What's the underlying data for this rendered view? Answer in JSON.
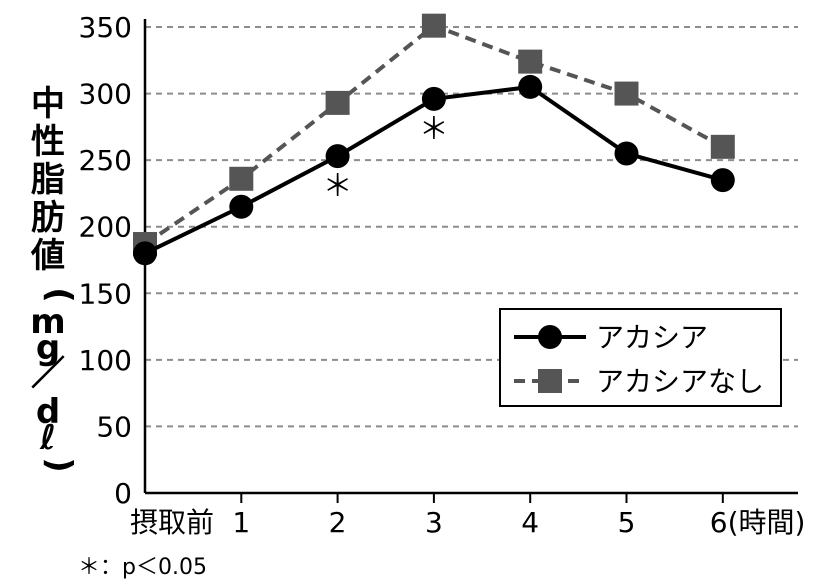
{
  "chart_data": {
    "type": "line",
    "categories": [
      "摂取前",
      "1",
      "2",
      "3",
      "4",
      "5",
      "6"
    ],
    "x_unit_label": "(時間)",
    "ylabel": "中性脂肪値(mg／dℓ)",
    "ylim": [
      0,
      350
    ],
    "y_ticks": [
      0,
      50,
      100,
      150,
      200,
      250,
      300,
      350
    ],
    "grid": "horizontal dashed",
    "legend_position": "lower-right",
    "series": [
      {
        "name": "アカシア",
        "values": [
          180,
          215,
          253,
          296,
          305,
          255,
          235
        ],
        "color": "#000000",
        "line_style": "solid",
        "marker": "circle"
      },
      {
        "name": "アカシアなし",
        "values": [
          187,
          236,
          293,
          351,
          324,
          300,
          260
        ],
        "color": "#555555",
        "line_style": "dashed",
        "marker": "square"
      }
    ],
    "significance_markers": [
      {
        "category_index": 2,
        "label": "＊"
      },
      {
        "category_index": 3,
        "label": "＊"
      }
    ],
    "footnote": "＊：p＜0.05"
  }
}
